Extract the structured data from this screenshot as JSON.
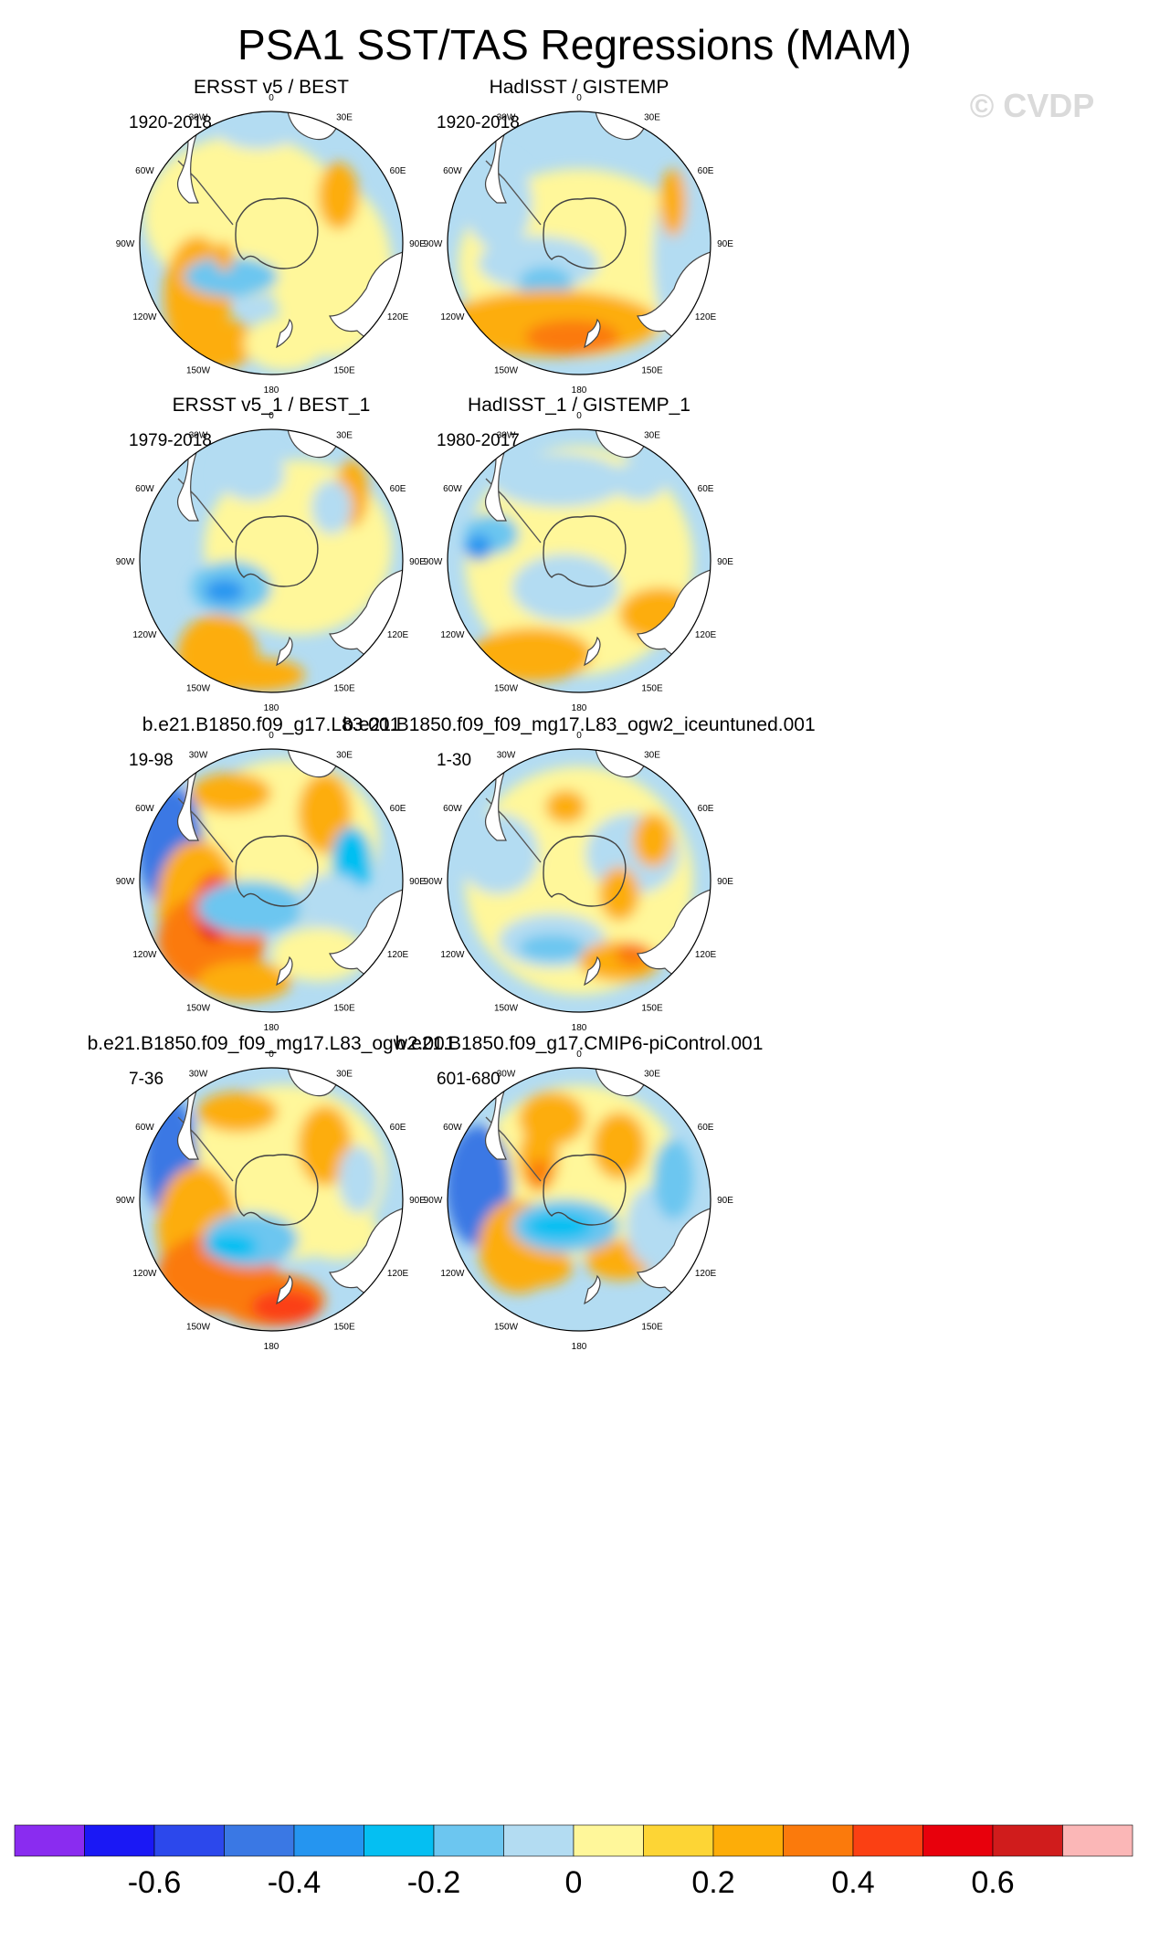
{
  "title": "PSA1 SST/TAS Regressions (MAM)",
  "watermark": "© CVDP",
  "lon_labels": [
    "0",
    "30E",
    "60E",
    "90E",
    "120E",
    "150E",
    "180",
    "150W",
    "120W",
    "90W",
    "60W",
    "30W"
  ],
  "panels": [
    {
      "title": "ERSST v5 / BEST",
      "years": "1920-2018",
      "pattern": "obs1"
    },
    {
      "title": "HadISST / GISTEMP",
      "years": "1920-2018",
      "pattern": "obs2"
    },
    {
      "title": "ERSST v5_1 / BEST_1",
      "years": "1979-2018",
      "pattern": "obs3"
    },
    {
      "title": "HadISST_1 / GISTEMP_1",
      "years": "1980-2017",
      "pattern": "obs4"
    },
    {
      "title": "b.e21.B1850.f09_g17.L83.001",
      "years": "19-98",
      "pattern": "mod1"
    },
    {
      "title": "b.e21.B1850.f09_f09_mg17.L83_ogw2_iceuntuned.001",
      "years": "1-30",
      "pattern": "mod2"
    },
    {
      "title": "b.e21.B1850.f09_f09_mg17.L83_ogw2.001",
      "years": "7-36",
      "pattern": "mod3"
    },
    {
      "title": "b.e21.B1850.f09_g17.CMIP6-piControl.001",
      "years": "601-680",
      "pattern": "mod4"
    }
  ],
  "colorbar": {
    "colors": [
      "#8a2cf0",
      "#1a18f5",
      "#2c48ec",
      "#3a78e4",
      "#2595f0",
      "#05bff2",
      "#6cc6f0",
      "#b3dcf2",
      "#fff79a",
      "#fdd535",
      "#fdad08",
      "#fb7a0c",
      "#fb4013",
      "#e8000c",
      "#d01c1c",
      "#fbb7b7"
    ],
    "tick_labels": [
      "-0.6",
      "-0.4",
      "-0.2",
      "0",
      "0.2",
      "0.4",
      "0.6"
    ],
    "tick_values": [
      -0.6,
      -0.4,
      -0.2,
      0,
      0.2,
      0.4,
      0.6
    ]
  }
}
